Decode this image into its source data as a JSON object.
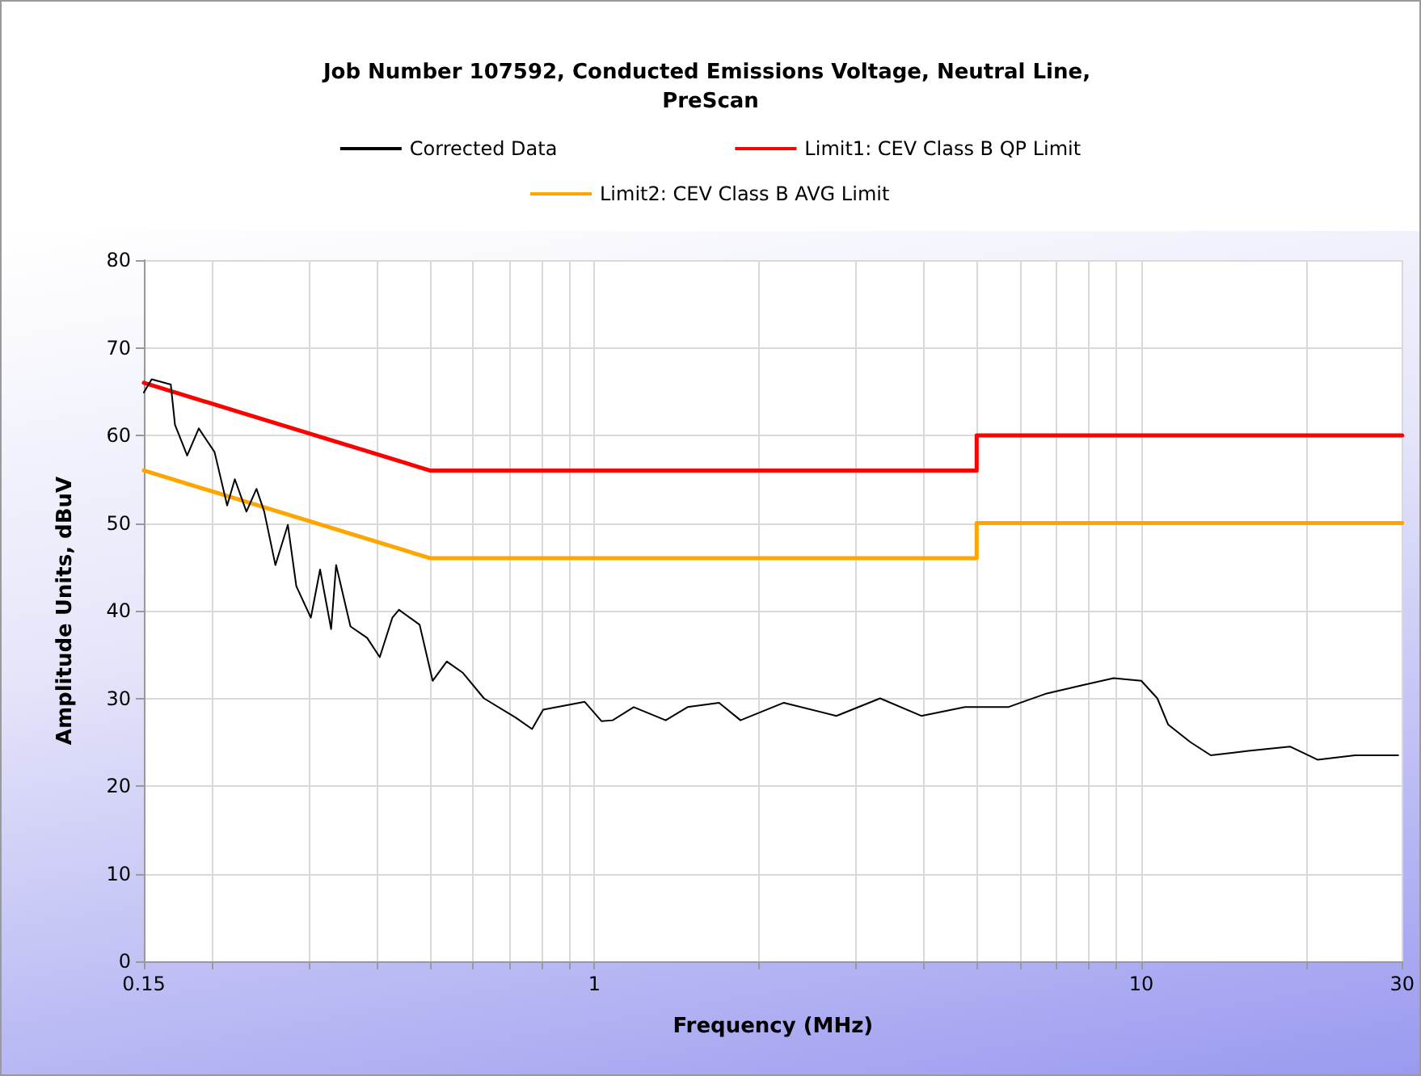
{
  "chart_data": {
    "type": "line",
    "title": "Job Number 107592, Conducted Emissions Voltage, Neutral Line, PreScan",
    "xlabel": "Frequency (MHz)",
    "ylabel": "Amplitude Units, dBuV",
    "log": "x",
    "grid": true,
    "legend": "top",
    "marker": "none",
    "line_style": "solid",
    "xlim": [
      0.15,
      30
    ],
    "xticks": [
      0.15,
      {
        "value": 0.2,
        "label": null
      },
      {
        "value": 0.3,
        "label": null
      },
      {
        "value": 0.4,
        "label": null
      },
      {
        "value": 0.5,
        "label": null
      },
      {
        "value": 0.6,
        "label": null
      },
      {
        "value": 0.7,
        "label": null
      },
      {
        "value": 0.8,
        "label": null
      },
      {
        "value": 0.9,
        "label": null
      },
      1,
      {
        "value": 2,
        "label": null
      },
      {
        "value": 3,
        "label": null
      },
      {
        "value": 4,
        "label": null
      },
      {
        "value": 5,
        "label": null
      },
      {
        "value": 6,
        "label": null
      },
      {
        "value": 7,
        "label": null
      },
      {
        "value": 8,
        "label": null
      },
      {
        "value": 9,
        "label": null
      },
      10,
      {
        "value": 20,
        "label": null
      },
      30
    ],
    "ylim": [
      0,
      80
    ],
    "yticks": [
      0,
      10,
      20,
      30,
      40,
      50,
      60,
      70,
      80
    ],
    "series": [
      {
        "name": "Corrected Data",
        "color": "#000000",
        "x": [
          0.15,
          0.155,
          0.168,
          0.171,
          0.18,
          0.189,
          0.202,
          0.213,
          0.22,
          0.231,
          0.241,
          0.249,
          0.261,
          0.275,
          0.285,
          0.303,
          0.315,
          0.33,
          0.337,
          0.358,
          0.384,
          0.405,
          0.427,
          0.439,
          0.479,
          0.506,
          0.537,
          0.575,
          0.628,
          0.718,
          0.769,
          0.806,
          0.96,
          1.03,
          1.08,
          1.18,
          1.35,
          1.48,
          1.69,
          1.85,
          2.22,
          2.77,
          3.33,
          3.96,
          4.76,
          5.71,
          6.67,
          7.8,
          8.9,
          10.0,
          10.7,
          11.2,
          12.3,
          13.4,
          15.7,
          18.7,
          21.0,
          24.6,
          29.5
        ],
        "values": [
          64.9,
          66.4,
          65.8,
          61.2,
          57.7,
          60.8,
          58.1,
          52,
          55,
          51.3,
          53.9,
          51.3,
          45.2,
          49.8,
          42.8,
          39.2,
          44.7,
          37.9,
          45.2,
          38.2,
          36.9,
          34.7,
          39.2,
          40.1,
          38.4,
          32,
          34.2,
          32.9,
          30,
          27.8,
          26.5,
          28.7,
          29.6,
          27.4,
          27.5,
          29,
          27.5,
          29,
          29.5,
          27.5,
          29.5,
          28,
          30,
          28,
          29,
          29,
          30.5,
          31.5,
          32.3,
          32,
          30,
          27,
          25,
          23.5,
          24,
          24.5,
          23,
          23.5,
          23.5
        ]
      },
      {
        "name": "Limit1: CEV Class B QP Limit",
        "color": "#ff0000",
        "x": [
          0.15,
          0.5,
          5,
          5,
          30
        ],
        "values": [
          66,
          56,
          56,
          60,
          60
        ]
      },
      {
        "name": "Limit2: CEV Class B AVG Limit",
        "color": "#ffa500",
        "x": [
          0.15,
          0.5,
          5,
          5,
          30
        ],
        "values": [
          56,
          46,
          46,
          50,
          50
        ]
      }
    ]
  }
}
